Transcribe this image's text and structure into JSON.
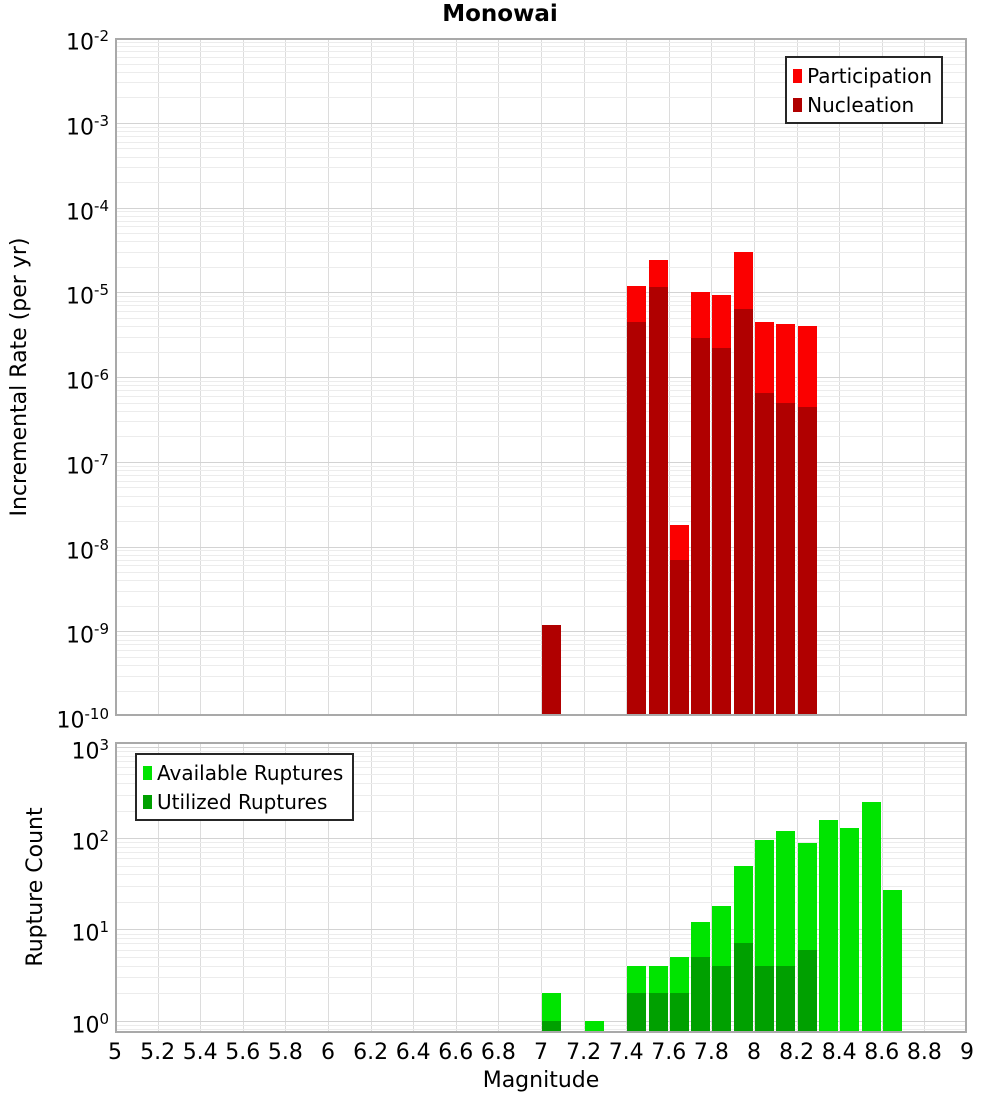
{
  "title": "Monowai",
  "chart_data": [
    {
      "id": "incremental-rate",
      "type": "bar",
      "title": "Monowai",
      "ylabel": "Incremental Rate (per yr)",
      "yscale": "log",
      "ylim": [
        1e-10,
        0.01
      ],
      "xlim": [
        5,
        9
      ],
      "bin_width_mag": 0.1,
      "grid": true,
      "ytick_exponents": [
        -2,
        -3,
        -4,
        -5,
        -6,
        -7,
        -8,
        -9,
        -10
      ],
      "legend": {
        "position": "top-right",
        "items": [
          {
            "label": "Participation",
            "color": "#fb0000"
          },
          {
            "label": "Nucleation",
            "color": "#b00000"
          }
        ]
      },
      "series": [
        {
          "name": "Participation",
          "color": "#fb0000",
          "points": [
            [
              7.0,
              1.2e-09
            ],
            [
              7.4,
              1.2e-05
            ],
            [
              7.5,
              2.4e-05
            ],
            [
              7.6,
              1.8e-08
            ],
            [
              7.7,
              1e-05
            ],
            [
              7.8,
              9.3e-06
            ],
            [
              7.9,
              3e-05
            ],
            [
              8.0,
              4.5e-06
            ],
            [
              8.1,
              4.2e-06
            ],
            [
              8.2,
              4e-06
            ]
          ]
        },
        {
          "name": "Nucleation",
          "color": "#b00000",
          "points": [
            [
              7.0,
              1.2e-09
            ],
            [
              7.4,
              4.5e-06
            ],
            [
              7.5,
              1.15e-05
            ],
            [
              7.6,
              7e-09
            ],
            [
              7.7,
              2.9e-06
            ],
            [
              7.8,
              2.2e-06
            ],
            [
              7.9,
              6.3e-06
            ],
            [
              8.0,
              6.5e-07
            ],
            [
              8.1,
              5e-07
            ],
            [
              8.2,
              4.4e-07
            ]
          ]
        }
      ]
    },
    {
      "id": "rupture-count",
      "type": "bar",
      "ylabel": "Rupture Count",
      "xlabel": "Magnitude",
      "yscale": "log",
      "ylim": [
        0.73,
        1130
      ],
      "xlim": [
        5,
        9
      ],
      "bin_width_mag": 0.1,
      "grid": true,
      "ytick_exponents": [
        3,
        2,
        1,
        0
      ],
      "xtick_labels": [
        "5",
        "5.2",
        "5.4",
        "5.6",
        "5.8",
        "6",
        "6.2",
        "6.4",
        "6.6",
        "6.8",
        "7",
        "7.2",
        "7.4",
        "7.6",
        "7.8",
        "8",
        "8.2",
        "8.4",
        "8.6",
        "8.8",
        "9"
      ],
      "legend": {
        "position": "top-left",
        "items": [
          {
            "label": "Available Ruptures",
            "color": "#00e400"
          },
          {
            "label": "Utilized Ruptures",
            "color": "#00a000"
          }
        ]
      },
      "series": [
        {
          "name": "Available Ruptures",
          "color": "#00e400",
          "points": [
            [
              7.0,
              2
            ],
            [
              7.2,
              1
            ],
            [
              7.4,
              4
            ],
            [
              7.5,
              4
            ],
            [
              7.6,
              5
            ],
            [
              7.7,
              12
            ],
            [
              7.8,
              18
            ],
            [
              7.9,
              49
            ],
            [
              8.0,
              95
            ],
            [
              8.1,
              120
            ],
            [
              8.2,
              88
            ],
            [
              8.3,
              160
            ],
            [
              8.4,
              130
            ],
            [
              8.5,
              250
            ],
            [
              8.6,
              27
            ]
          ]
        },
        {
          "name": "Utilized Ruptures",
          "color": "#00a000",
          "points": [
            [
              7.0,
              1
            ],
            [
              7.4,
              2
            ],
            [
              7.5,
              2
            ],
            [
              7.6,
              2
            ],
            [
              7.7,
              5
            ],
            [
              7.8,
              4
            ],
            [
              7.9,
              7
            ],
            [
              8.0,
              4
            ],
            [
              8.1,
              4
            ],
            [
              8.2,
              6
            ]
          ]
        }
      ]
    }
  ]
}
